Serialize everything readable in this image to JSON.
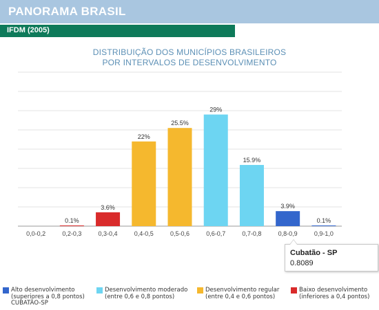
{
  "header": {
    "title": "PANORAMA BRASIL",
    "subtitle": "IFDM (2005)"
  },
  "chart_data": {
    "type": "bar",
    "title_lines": [
      "DISTRIBUIÇÃO DOS MUNICÍPIOS BRASILEIROS",
      "POR INTERVALOS DE DESENVOLVIMENTO"
    ],
    "categories": [
      "0,0-0,2",
      "0,2-0,3",
      "0,3-0,4",
      "0,4-0,5",
      "0,5-0,6",
      "0,6-0,7",
      "0,7-0,8",
      "0,8-0,9",
      "0,9-1,0"
    ],
    "values": [
      0,
      0.1,
      3.6,
      22,
      25.5,
      29,
      15.9,
      3.9,
      0.1
    ],
    "value_labels": [
      "",
      "0.1%",
      "3.6%",
      "22%",
      "25.5%",
      "29%",
      "15.9%",
      "3.9%",
      "0.1%"
    ],
    "bar_groups": [
      "",
      "low",
      "low",
      "regular",
      "regular",
      "moderate",
      "moderate",
      "high",
      "high"
    ],
    "ylim": [
      0,
      40
    ],
    "grid": true,
    "colors": {
      "high": "#3366cc",
      "moderate": "#6dd5f2",
      "regular": "#f5b82e",
      "low": "#d92b2b"
    }
  },
  "tooltip": {
    "title": "Cubatão - SP",
    "value": "0.8089"
  },
  "legend": [
    {
      "key": "high",
      "line1": "Alto desenvolvimento",
      "line2": "(superiores a 0,8 pontos)"
    },
    {
      "key": "moderate",
      "line1": "Desenvolvimento moderado",
      "line2": "(entre 0,6 e 0,8 pontos)"
    },
    {
      "key": "regular",
      "line1": "Desenvolvimento regular",
      "line2": "(entre 0,4 e 0,6 pontos)"
    },
    {
      "key": "low",
      "line1": "Baixo desenvolvimento",
      "line2": "(inferiores a 0,4 pontos)"
    }
  ],
  "legend_extra": "CUBATÃO-SP"
}
